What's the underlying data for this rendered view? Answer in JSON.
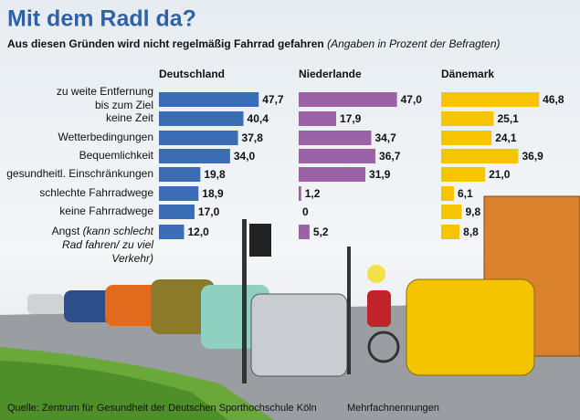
{
  "chart_data": {
    "type": "bar",
    "orientation": "horizontal",
    "title": "Mit dem Radl da?",
    "subtitle": "Aus diesen Gründen wird nicht regelmäßig Fahrrad gefahren",
    "subtitle_note": "(Angaben in Prozent der Befragten)",
    "categories": [
      "zu weite Entfernung bis zum Ziel",
      "keine Zeit",
      "Wetterbedingungen",
      "Bequemlichkeit",
      "gesundheitl. Einschränkungen",
      "schlechte Fahrradwege",
      "keine Fahrradwege",
      "Angst"
    ],
    "category_note": "(kann schlecht Rad fahren/ zu viel Verkehr)",
    "series": [
      {
        "name": "Deutschland",
        "color": "#3b6db4",
        "values": [
          47.7,
          40.4,
          37.8,
          34.0,
          19.8,
          18.9,
          17.0,
          12.0
        ],
        "value_labels": [
          "47,7",
          "40,4",
          "37,8",
          "34,0",
          "19,8",
          "18,9",
          "17,0",
          "12,0"
        ]
      },
      {
        "name": "Niederlande",
        "color": "#9b62a8",
        "values": [
          47.0,
          17.9,
          34.7,
          36.7,
          31.9,
          1.2,
          0,
          5.2
        ],
        "value_labels": [
          "47,0",
          "17,9",
          "34,7",
          "36,7",
          "31,9",
          "1,2",
          "0",
          "5,2"
        ]
      },
      {
        "name": "Dänemark",
        "color": "#f6c400",
        "values": [
          46.8,
          25.1,
          24.1,
          36.9,
          21.0,
          6.1,
          9.8,
          8.8
        ],
        "value_labels": [
          "46,8",
          "25,1",
          "24,1",
          "36,9",
          "21,0",
          "6,1",
          "9,8",
          "8,8"
        ]
      }
    ],
    "source": "Quelle: Zentrum für Gesundheit der Deutschen Sporthochschule Köln",
    "note": "Mehrfachnennungen"
  }
}
